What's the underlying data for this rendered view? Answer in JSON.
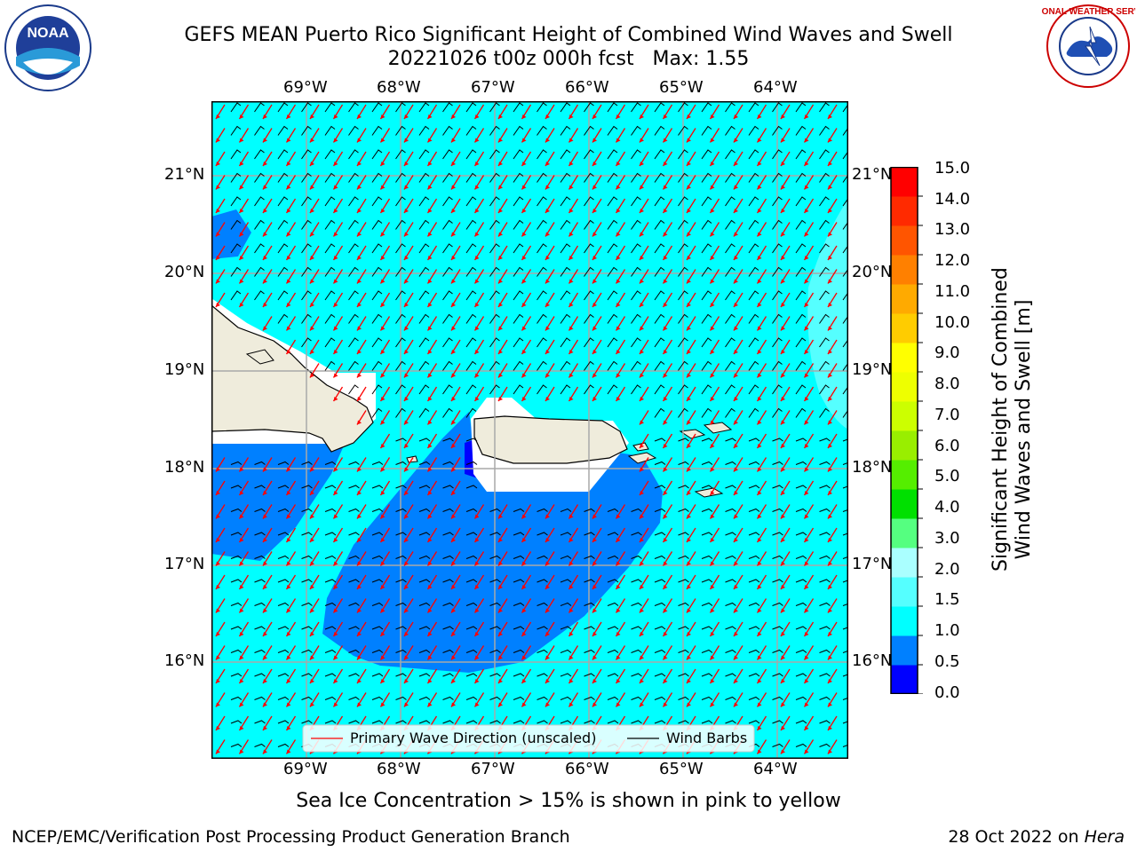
{
  "header": {
    "title_line1": "GEFS MEAN Puerto Rico Significant Height of Combined Wind Waves and Swell",
    "title_line2": "20221026 t00z 000h fcst   Max: 1.55",
    "left_logo_text": "NOAA",
    "left_logo_ring_text": "NATIONAL OCEANIC AND ATMOSPHERIC ADMINISTRATION · U.S. DEPARTMENT OF COMMERCE",
    "right_logo_ring_text": "NATIONAL WEATHER SERVICE"
  },
  "map": {
    "lon_labels": [
      "69°W",
      "68°W",
      "67°W",
      "66°W",
      "65°W",
      "64°W"
    ],
    "lat_labels": [
      "21°N",
      "20°N",
      "19°N",
      "18°N",
      "17°N",
      "16°N"
    ],
    "legend": {
      "primary_wave": "Primary Wave Direction (unscaled)",
      "wind_barbs": "Wind Barbs"
    },
    "colors": {
      "land": "#efecdc",
      "band_0_5": "#0000ff",
      "band_0_5_1": "#0080ff",
      "band_1_1_5": "#00ffff",
      "band_1_5_2": "#55ffff",
      "arrow": "#ff0000"
    }
  },
  "colorbar": {
    "ticks": [
      "15.0",
      "14.0",
      "13.0",
      "12.0",
      "11.0",
      "10.0",
      "9.0",
      "8.0",
      "7.0",
      "6.0",
      "5.0",
      "4.0",
      "3.0",
      "2.0",
      "1.5",
      "1.0",
      "0.5",
      "0.0"
    ],
    "label_line1": "Significant Height of Combined",
    "label_line2": "Wind Waves and Swell [m]",
    "colors": [
      "#0000ff",
      "#0080ff",
      "#00ffff",
      "#55ffff",
      "#aaffff",
      "#55ff80",
      "#00e000",
      "#55ee00",
      "#99ee00",
      "#ccff00",
      "#eeff00",
      "#ffff00",
      "#ffcc00",
      "#ffaa00",
      "#ff8000",
      "#ff5500",
      "#ff2a00",
      "#ff0000"
    ]
  },
  "notes": {
    "sea_ice": "Sea Ice Concentration > 15% is shown in pink to yellow"
  },
  "footer": {
    "left": "NCEP/EMC/Verification Post Processing Product Generation Branch",
    "right_prefix": "28 Oct 2022 on ",
    "right_host": "Hera"
  }
}
